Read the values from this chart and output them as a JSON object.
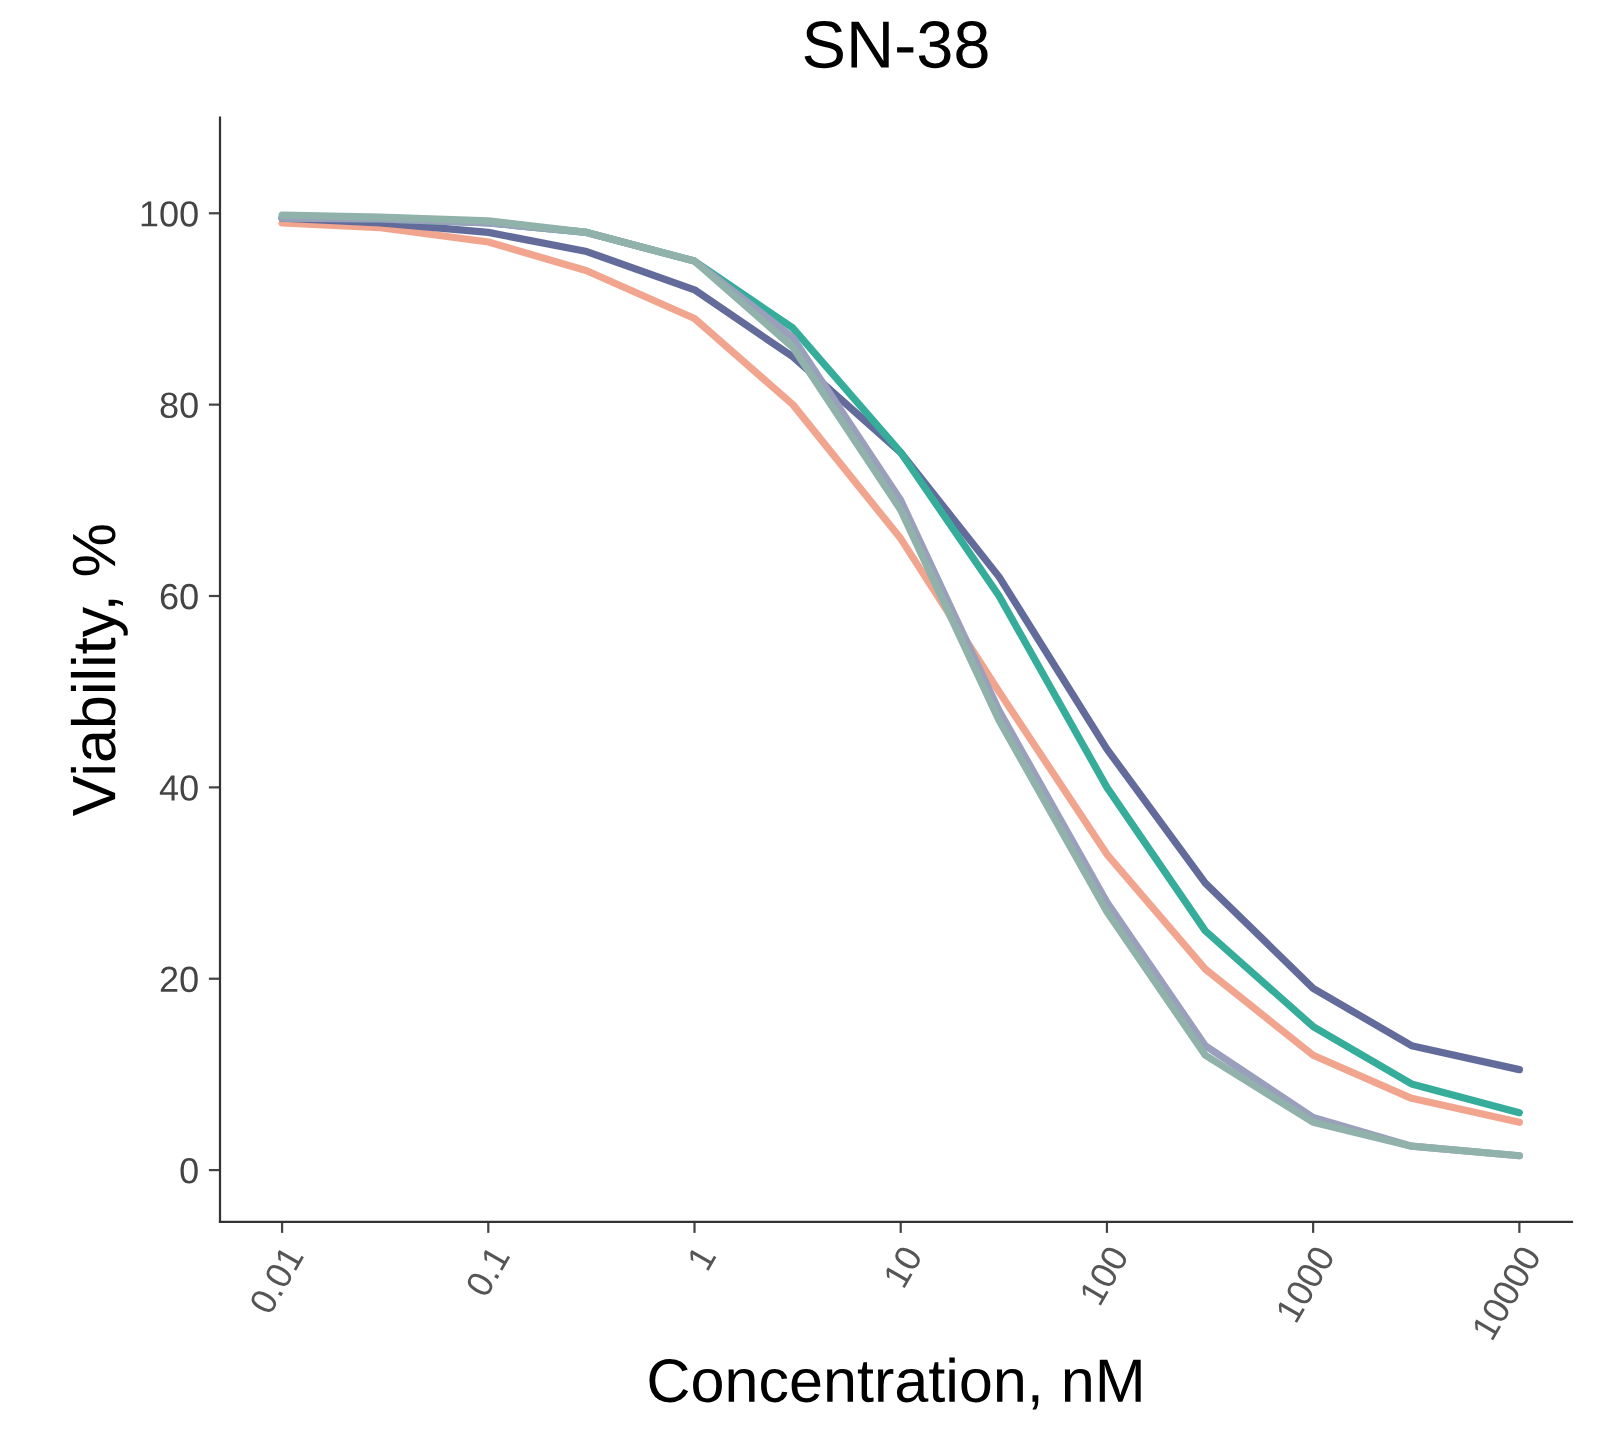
{
  "chart_data": {
    "type": "line",
    "title": "SN-38",
    "xlabel": "Concentration, nM",
    "ylabel": "Viability, %",
    "log": "x",
    "x": [
      0.01,
      0.03,
      0.1,
      0.3,
      1,
      3,
      10,
      30,
      100,
      300,
      1000,
      3000,
      10000
    ],
    "series": [
      {
        "color": "#f2a58e",
        "values": [
          99,
          98.5,
          97,
          94,
          89,
          80,
          66,
          50,
          33,
          21,
          12,
          7.5,
          5
        ]
      },
      {
        "color": "#636b9b",
        "values": [
          99.5,
          99,
          98,
          96,
          92,
          85,
          75,
          62,
          44,
          30,
          19,
          13,
          10.5
        ]
      },
      {
        "color": "#35ad9a",
        "values": [
          99.5,
          99.4,
          99,
          98,
          95,
          88,
          75,
          60,
          40,
          25,
          15,
          9,
          6
        ]
      },
      {
        "color": "#9aa0bc",
        "values": [
          99.5,
          99.4,
          99,
          98,
          95,
          87,
          70,
          48,
          28,
          13,
          5.5,
          2.5,
          1.5
        ]
      },
      {
        "color": "#90b2aa",
        "values": [
          99.8,
          99.6,
          99.2,
          98,
          95,
          86,
          69,
          47,
          27,
          12,
          5,
          2.5,
          1.5
        ]
      }
    ],
    "xlim": [
      0.005,
      18000
    ],
    "ylim": [
      -5.4,
      110
    ],
    "xticks": [
      {
        "value": 0.01,
        "label": "0.01"
      },
      {
        "value": 0.1,
        "label": "0.1"
      },
      {
        "value": 1,
        "label": "1"
      },
      {
        "value": 10,
        "label": "10"
      },
      {
        "value": 100,
        "label": "100"
      },
      {
        "value": 1000,
        "label": "1000"
      },
      {
        "value": 10000,
        "label": "10000"
      }
    ],
    "yticks": [
      0,
      20,
      40,
      60,
      80,
      100
    ],
    "grid": false,
    "marker": "none",
    "line_style": "solid"
  }
}
